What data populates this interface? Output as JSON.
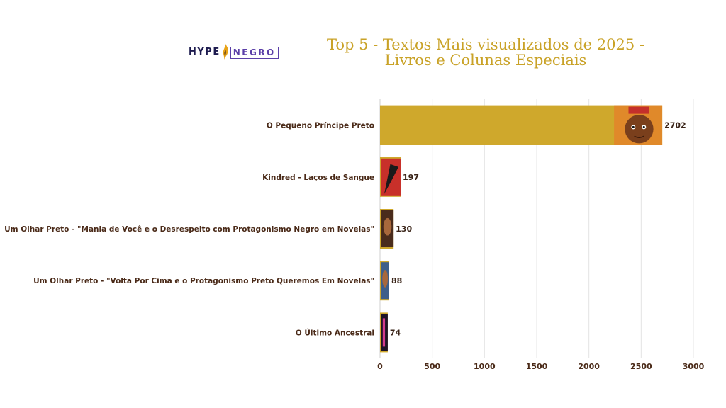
{
  "logo": {
    "part1": "HYPE",
    "part2": "NEGRO"
  },
  "title_lines": [
    "Top 5 - Textos Mais visualizados de 2025 -",
    "Livros e Colunas Especiais"
  ],
  "colors": {
    "bar": "#cfa82c",
    "title": "#c9a227",
    "label": "#4a2a18",
    "grid": "#e4e4e4"
  },
  "chart_data": {
    "type": "bar",
    "orientation": "horizontal",
    "title": "Top 5 - Textos Mais visualizados de 2025 - Livros e Colunas Especiais",
    "categories": [
      "O Pequeno Príncipe Preto",
      "Kindred - Laços de Sangue",
      "Um Olhar Preto - \"Mania de Você e o Desrespeito com Protagonismo Negro em Novelas\"",
      "Um Olhar Preto - \"Volta Por Cima e o Protagonismo Preto Queremos Em Novelas\"",
      "O Último Ancestral"
    ],
    "values": [
      2702,
      197,
      130,
      88,
      74
    ],
    "xlim": [
      0,
      3000
    ],
    "xticks": [
      0,
      500,
      1000,
      1500,
      2000,
      2500,
      3000
    ],
    "grid": "vertical",
    "data_labels": true,
    "bar_images": [
      "book-cover-illustration",
      "book-cover-illustration",
      "portrait-photo",
      "portrait-photo",
      "book-cover-illustration"
    ]
  }
}
